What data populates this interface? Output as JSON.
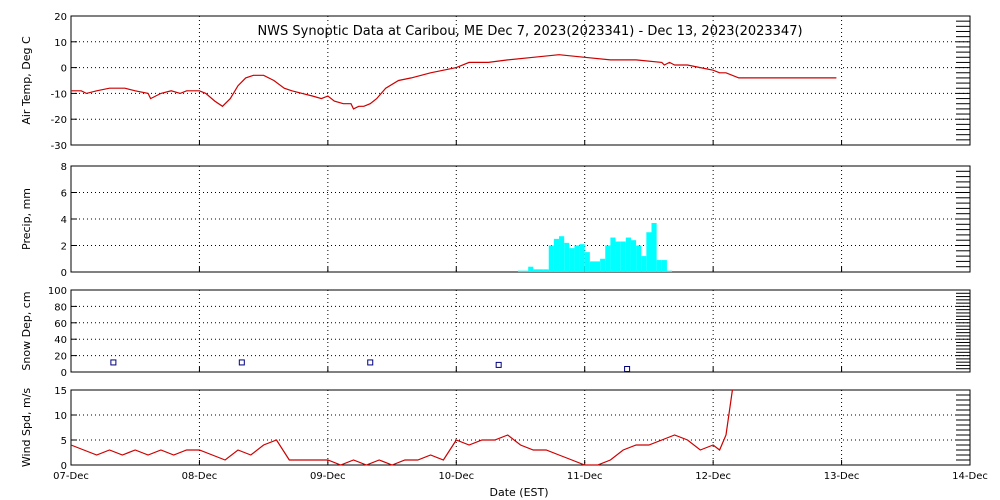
{
  "chart_data": {
    "title": "NWS Synoptic Data at Caribou, ME   Dec  7, 2023(2023341) - Dec 13, 2023(2023347)",
    "xlabel": "Date (EST)",
    "x_ticks": [
      "07-Dec",
      "08-Dec",
      "09-Dec",
      "10-Dec",
      "11-Dec",
      "12-Dec",
      "13-Dec",
      "14-Dec"
    ],
    "grid": true,
    "panels": [
      {
        "id": "temp",
        "type": "line",
        "ylabel": "Air Temp, Deg C",
        "ylim": [
          -30,
          20
        ],
        "yticks": [
          "20",
          "10",
          "0",
          "-10",
          "-20",
          "-30"
        ],
        "color": "#cc0000",
        "series": {
          "x": [
            0,
            0.08,
            0.12,
            0.2,
            0.3,
            0.42,
            0.5,
            0.6,
            0.62,
            0.7,
            0.78,
            0.85,
            0.9,
            0.95,
            1.0,
            1.05,
            1.12,
            1.18,
            1.24,
            1.3,
            1.36,
            1.42,
            1.5,
            1.58,
            1.66,
            1.72,
            1.8,
            1.88,
            1.95,
            2.0,
            2.05,
            2.12,
            2.18,
            2.2,
            2.24,
            2.28,
            2.33,
            2.38,
            2.45,
            2.55,
            2.65,
            2.8,
            3.0,
            3.1,
            3.25,
            3.4,
            3.6,
            3.8,
            4.0,
            4.2,
            4.4,
            4.6,
            4.62,
            4.66,
            4.7,
            4.8,
            4.9,
            5.0,
            5.05,
            5.1,
            5.2,
            5.4,
            5.6,
            5.8,
            5.96
          ],
          "y": [
            -9,
            -9,
            -10,
            -9,
            -8,
            -8,
            -9,
            -10,
            -12,
            -10,
            -9,
            -10,
            -9,
            -9,
            -9,
            -10,
            -13,
            -15,
            -12,
            -7,
            -4,
            -3,
            -3,
            -5,
            -8,
            -9,
            -10,
            -11,
            -12,
            -11,
            -13,
            -14,
            -14,
            -16,
            -15,
            -15,
            -14,
            -12,
            -8,
            -5,
            -4,
            -2,
            0,
            2,
            2,
            3,
            4,
            5,
            4,
            3,
            3,
            2,
            1,
            2,
            1,
            1,
            0,
            -1,
            -2,
            -2,
            -4,
            -4,
            -4,
            -4,
            -4
          ]
        }
      },
      {
        "id": "precip",
        "type": "bar",
        "ylabel": "Precip, mm",
        "ylim": [
          0,
          8
        ],
        "yticks": [
          "8",
          "6",
          "4",
          "2",
          "0"
        ],
        "color": "#00ffff",
        "bar_width": 0.04,
        "series": {
          "x": [
            3.48,
            3.52,
            3.56,
            3.6,
            3.64,
            3.68,
            3.72,
            3.76,
            3.8,
            3.84,
            3.88,
            3.92,
            3.96,
            4.0,
            4.04,
            4.08,
            4.12,
            4.16,
            4.2,
            4.24,
            4.28,
            4.32,
            4.36,
            4.4,
            4.44,
            4.48,
            4.52,
            4.56,
            4.6,
            4.64
          ],
          "y": [
            0.1,
            0.1,
            0.4,
            0.2,
            0.2,
            0.2,
            2.0,
            2.5,
            2.7,
            2.2,
            1.8,
            2.0,
            2.1,
            1.5,
            0.8,
            0.8,
            1.0,
            2.0,
            2.6,
            2.3,
            2.3,
            2.6,
            2.4,
            2.0,
            1.2,
            3.0,
            3.7,
            0.9,
            0.9,
            0.1
          ]
        }
      },
      {
        "id": "snow",
        "type": "scatter",
        "ylabel": "Snow Dep, cm",
        "ylim": [
          0,
          100
        ],
        "yticks": [
          "100",
          "80",
          "60",
          "40",
          "20",
          "0"
        ],
        "color": "#000080",
        "series": {
          "x": [
            0.33,
            1.33,
            2.33,
            3.33,
            4.33
          ],
          "y": [
            8,
            8,
            8,
            5,
            0
          ]
        }
      },
      {
        "id": "wind",
        "type": "line",
        "ylabel": "Wind Spd, m/s",
        "ylim": [
          0,
          15
        ],
        "yticks": [
          "15",
          "10",
          "5",
          "0"
        ],
        "color": "#cc0000",
        "series": {
          "x": [
            0,
            0.1,
            0.2,
            0.3,
            0.4,
            0.5,
            0.6,
            0.7,
            0.8,
            0.9,
            1.0,
            1.1,
            1.2,
            1.3,
            1.4,
            1.5,
            1.6,
            1.7,
            1.8,
            2.0,
            2.1,
            2.2,
            2.3,
            2.4,
            2.5,
            2.6,
            2.7,
            2.8,
            2.9,
            3.0,
            3.1,
            3.2,
            3.3,
            3.4,
            3.5,
            3.6,
            3.7,
            3.8,
            3.9,
            4.0,
            4.1,
            4.2,
            4.3,
            4.4,
            4.5,
            4.6,
            4.7,
            4.8,
            4.9,
            5.0,
            5.05,
            5.1,
            5.15
          ],
          "y": [
            4,
            3,
            2,
            3,
            2,
            3,
            2,
            3,
            2,
            3,
            3,
            2,
            1,
            3,
            2,
            4,
            5,
            1,
            1,
            1,
            0,
            1,
            0,
            1,
            0,
            1,
            1,
            2,
            1,
            5,
            4,
            5,
            5,
            6,
            4,
            3,
            3,
            2,
            1,
            0,
            0,
            1,
            3,
            4,
            4,
            5,
            6,
            5,
            3,
            4,
            3,
            6,
            15
          ]
        }
      }
    ]
  }
}
